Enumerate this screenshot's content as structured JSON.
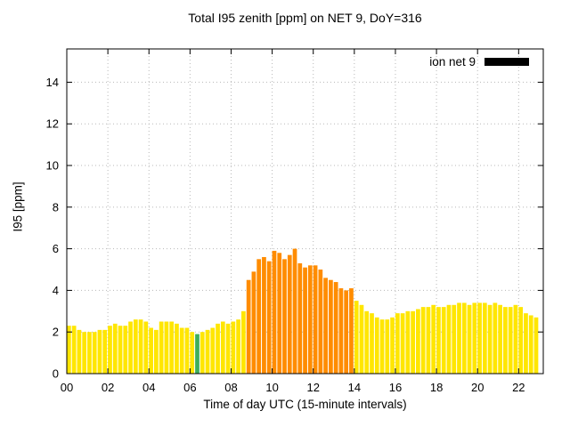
{
  "chart_data": {
    "type": "bar",
    "title": "Total I95 zenith [ppm] on NET 9, DoY=316",
    "xlabel": "Time of day UTC (15-minute intervals)",
    "ylabel": "I95 [ppm]",
    "legend": {
      "label": "ion net 9",
      "swatch_color": "#000000"
    },
    "x_start_hour": 0,
    "x_step_hours": 0.25,
    "xlim": [
      0,
      23.2
    ],
    "ylim": [
      0,
      15.6
    ],
    "x_ticks": [
      0,
      2,
      4,
      6,
      8,
      10,
      12,
      14,
      16,
      18,
      20,
      22
    ],
    "x_tick_labels": [
      "00",
      "02",
      "04",
      "06",
      "08",
      "10",
      "12",
      "14",
      "16",
      "18",
      "20",
      "22"
    ],
    "y_ticks": [
      0,
      2,
      4,
      6,
      8,
      10,
      12,
      14
    ],
    "grid": true,
    "bar_color_default": "#ffe600",
    "bar_color_elevated": "#ff8c00",
    "bar_color_flagged": "#3cae5c",
    "elevated_range": {
      "from_index": 35,
      "to_index": 55
    },
    "flagged_indices": [
      25
    ],
    "values": [
      2.3,
      2.3,
      2.1,
      2.0,
      2.0,
      2.0,
      2.1,
      2.1,
      2.3,
      2.4,
      2.3,
      2.3,
      2.5,
      2.6,
      2.6,
      2.5,
      2.2,
      2.1,
      2.5,
      2.5,
      2.5,
      2.4,
      2.2,
      2.2,
      2.0,
      1.9,
      2.0,
      2.1,
      2.2,
      2.4,
      2.5,
      2.4,
      2.5,
      2.6,
      3.0,
      4.5,
      4.9,
      5.5,
      5.6,
      5.4,
      5.9,
      5.8,
      5.5,
      5.7,
      6.0,
      5.3,
      5.1,
      5.2,
      5.2,
      5.0,
      4.6,
      4.5,
      4.4,
      4.1,
      4.0,
      4.1,
      3.5,
      3.3,
      3.0,
      2.9,
      2.7,
      2.6,
      2.6,
      2.7,
      2.9,
      2.9,
      3.0,
      3.0,
      3.1,
      3.2,
      3.2,
      3.3,
      3.2,
      3.2,
      3.3,
      3.3,
      3.4,
      3.4,
      3.3,
      3.4,
      3.4,
      3.4,
      3.3,
      3.4,
      3.3,
      3.2,
      3.2,
      3.3,
      3.2,
      2.9,
      2.8,
      2.7
    ]
  }
}
